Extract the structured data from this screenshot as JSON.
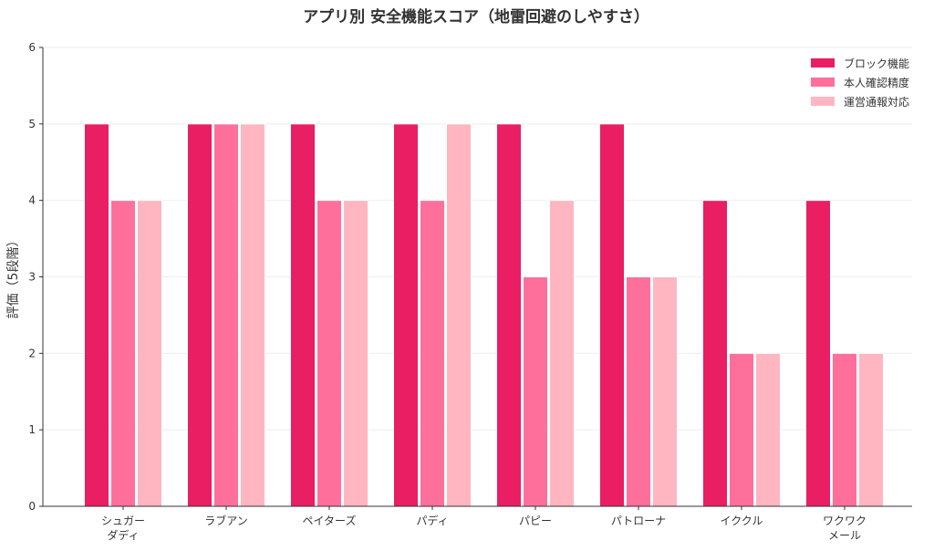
{
  "chart_data": {
    "type": "bar",
    "title": "アプリ別 安全機能スコア（地雷回避のしやすさ）",
    "xlabel": "",
    "ylabel": "評価（5段階）",
    "ylim": [
      0,
      6
    ],
    "yticks": [
      0,
      1,
      2,
      3,
      4,
      5,
      6
    ],
    "grid": true,
    "legend_position": "top-right",
    "categories": [
      [
        "シュガー",
        "ダディ"
      ],
      [
        "ラブアン"
      ],
      [
        "ペイターズ"
      ],
      [
        "パディ"
      ],
      [
        "パピー"
      ],
      [
        "パトローナ"
      ],
      [
        "イククル"
      ],
      [
        "ワクワク",
        "メール"
      ]
    ],
    "series": [
      {
        "name": "ブロック機能",
        "color": "#e91e63",
        "values": [
          5,
          5,
          5,
          5,
          5,
          5,
          4,
          4
        ]
      },
      {
        "name": "本人確認精度",
        "color": "#ff6f9c",
        "values": [
          4,
          5,
          4,
          4,
          3,
          3,
          2,
          2
        ]
      },
      {
        "name": "運営通報対応",
        "color": "#ffb6c1",
        "values": [
          4,
          5,
          4,
          5,
          4,
          3,
          2,
          2
        ]
      }
    ]
  }
}
